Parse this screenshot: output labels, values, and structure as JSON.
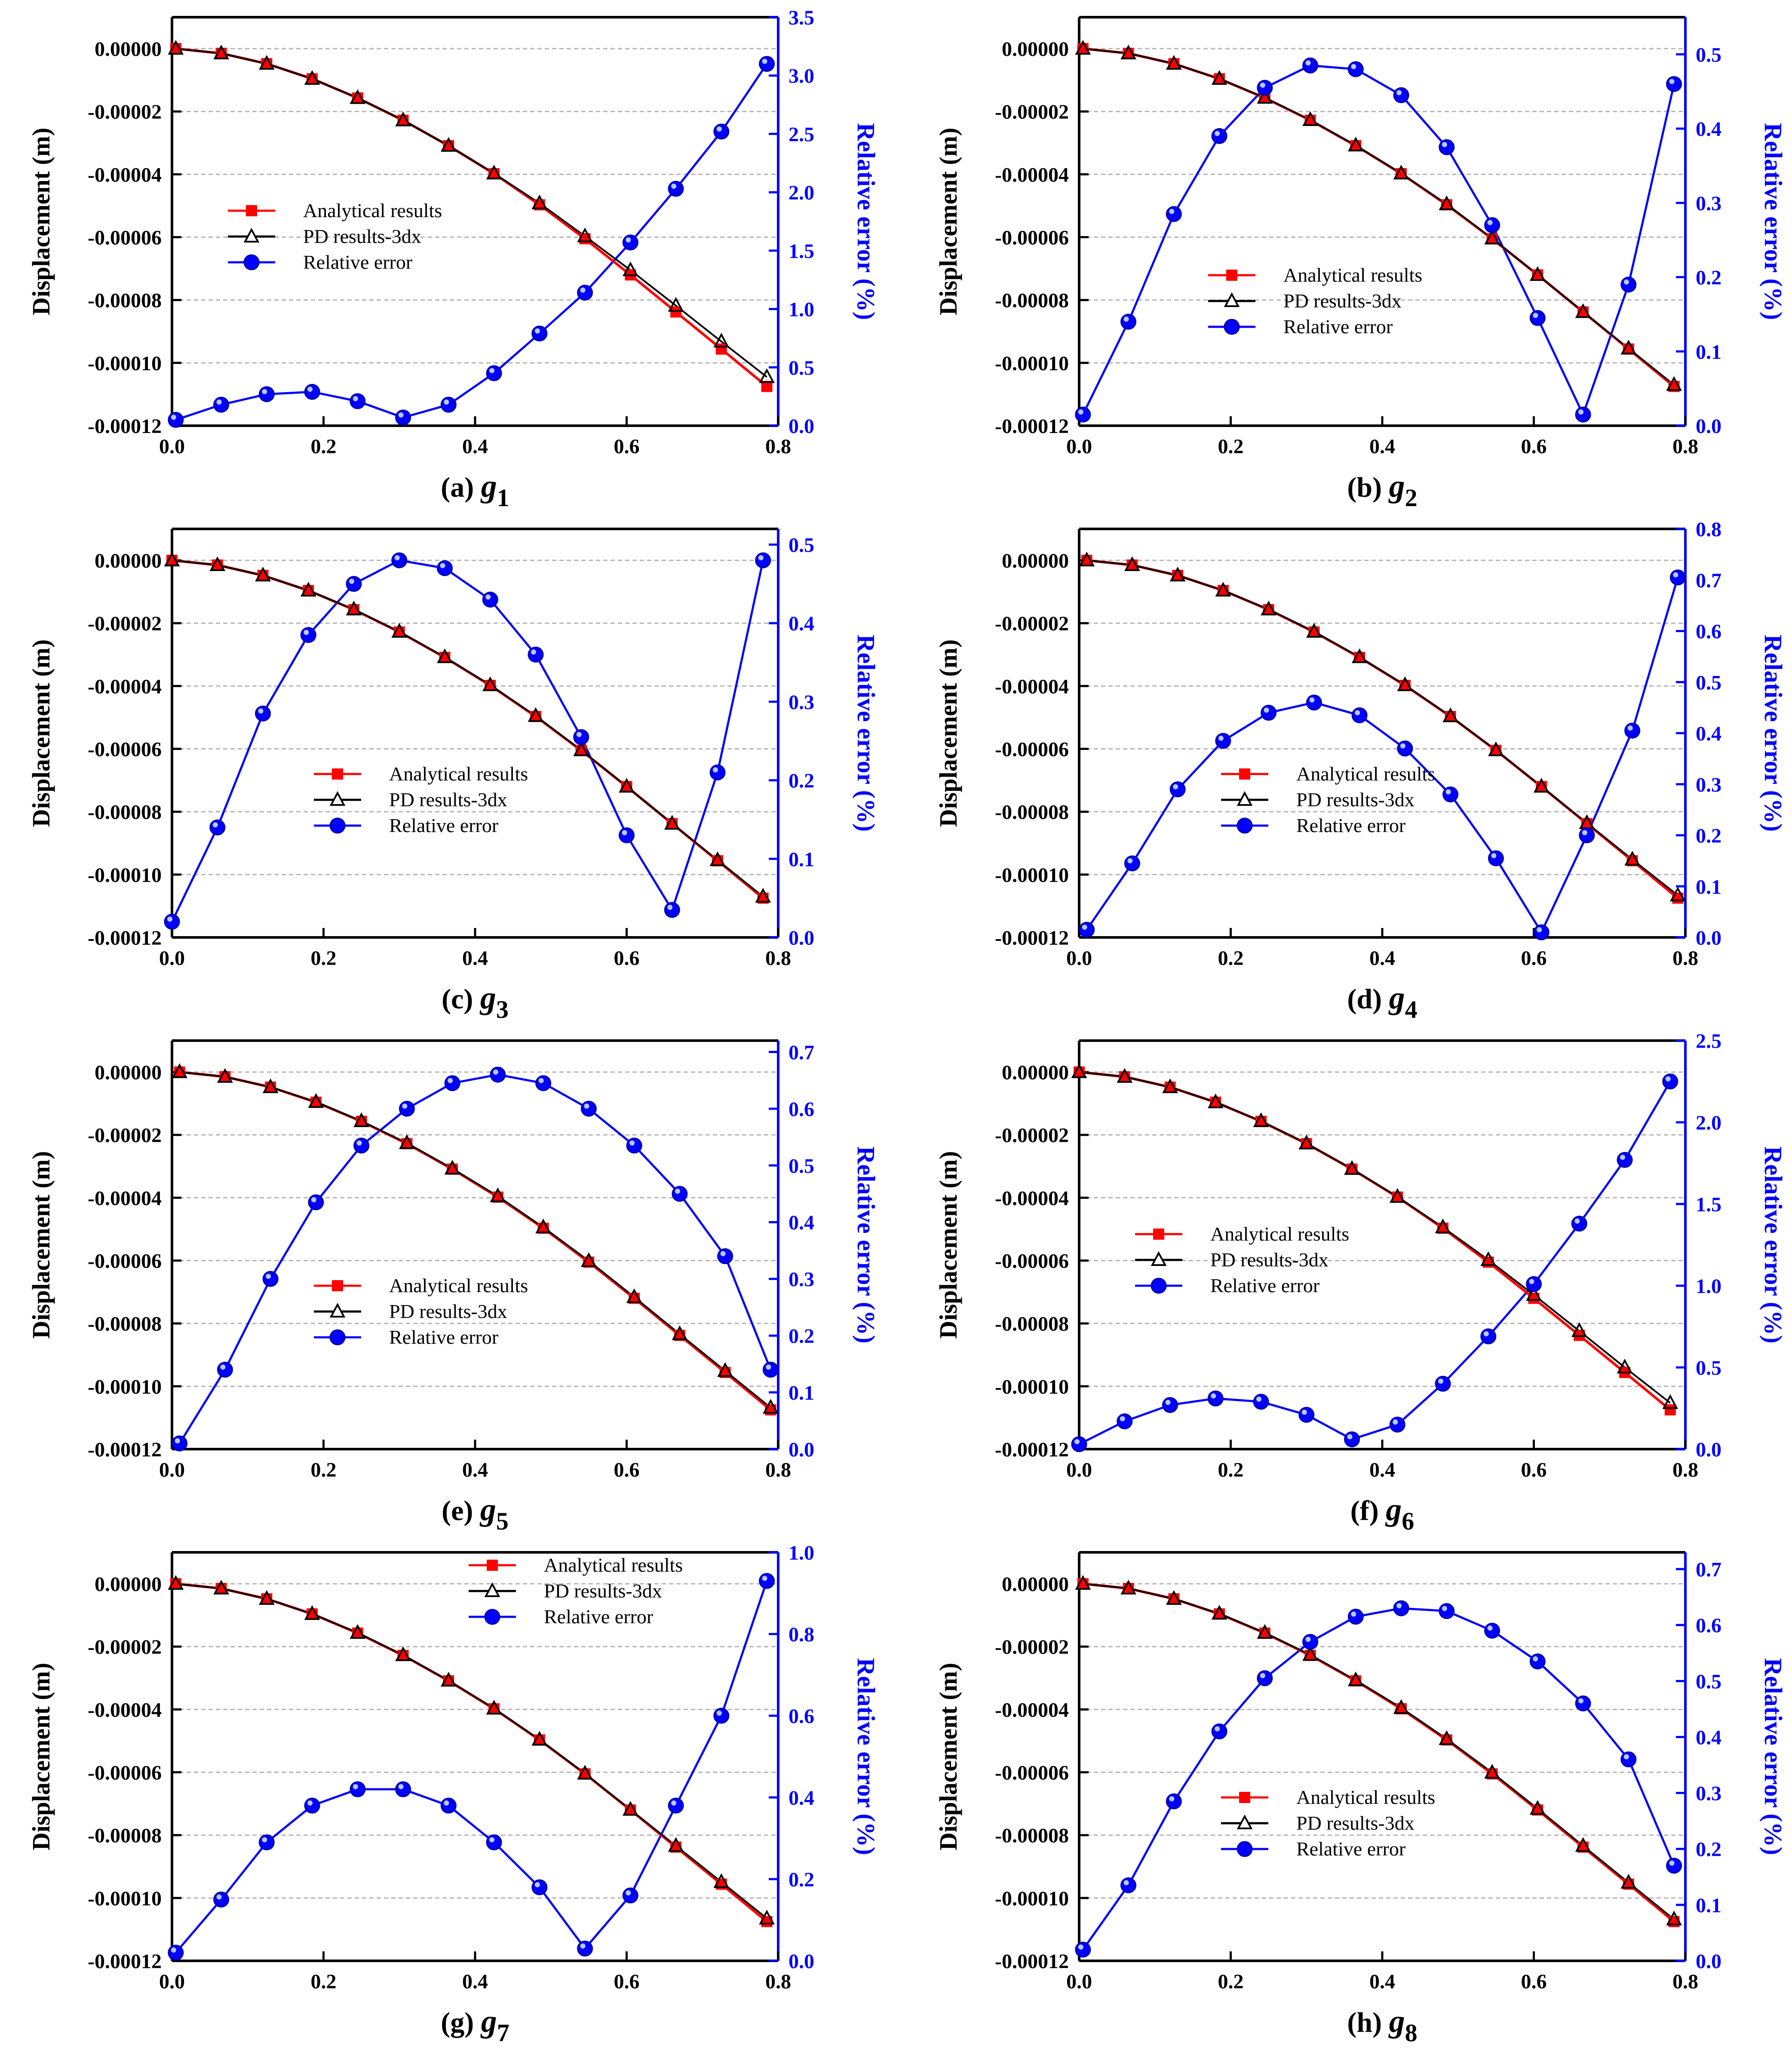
{
  "figure": {
    "legend_labels": [
      "Analytical results",
      "PD results-3dx",
      "Relative error"
    ],
    "left_axis_label": "Displacement (m)",
    "right_axis_label": "Relative error (%)",
    "x_ticks": [
      "0.0",
      "0.2",
      "0.4",
      "0.6",
      "0.8"
    ],
    "y_ticks": [
      "0.00000",
      "-0.00002",
      "-0.00004",
      "-0.00006",
      "-0.00008",
      "-0.00010",
      "-0.00012"
    ]
  },
  "colors": {
    "analytical": "#ff0000",
    "pd": "#000000",
    "error": "#0000ff",
    "grid": "#b4b4b4"
  },
  "chart_data": [
    {
      "type": "line",
      "panel": "(a)",
      "subscript": "1",
      "title": "(a) g1",
      "xlabel": "",
      "ylabel": "Displacement (m)",
      "y2label": "Relative error (%)",
      "xlim": [
        0,
        0.8
      ],
      "ylim": [
        -0.00012,
        1e-05
      ],
      "y2lim": [
        0,
        3.5
      ],
      "y2_ticks": [
        "0.0",
        "0.5",
        "1.0",
        "1.5",
        "2.0",
        "2.5",
        "3.0",
        "3.5"
      ],
      "legend_position": "center-left",
      "x": [
        0.005,
        0.065,
        0.125,
        0.185,
        0.245,
        0.305,
        0.365,
        0.425,
        0.485,
        0.545,
        0.605,
        0.665,
        0.725,
        0.785
      ],
      "series": [
        {
          "name": "Analytical results",
          "axis": "left",
          "values": [
            0,
            -1.5e-06,
            -4.8e-06,
            -9.6e-06,
            -1.57e-05,
            -2.28e-05,
            -3.09e-05,
            -3.98e-05,
            -4.97e-05,
            -6.05e-05,
            -7.2e-05,
            -8.38e-05,
            -9.56e-05,
            -0.0001075
          ]
        },
        {
          "name": "PD results-3dx",
          "axis": "left",
          "values": [
            0,
            -1.5e-06,
            -4.8e-06,
            -9.6e-06,
            -1.57e-05,
            -2.28e-05,
            -3.09e-05,
            -3.97e-05,
            -4.92e-05,
            -5.97e-05,
            -7.05e-05,
            -8.18e-05,
            -9.32e-05,
            -0.0001045
          ]
        },
        {
          "name": "Relative error",
          "axis": "right",
          "values": [
            0.05,
            0.18,
            0.27,
            0.29,
            0.21,
            0.07,
            0.18,
            0.45,
            0.79,
            1.14,
            1.57,
            2.03,
            2.52,
            3.1
          ]
        }
      ]
    },
    {
      "type": "line",
      "panel": "(b)",
      "subscript": "2",
      "title": "(b) g2",
      "xlabel": "",
      "ylabel": "Displacement (m)",
      "y2label": "Relative error (%)",
      "xlim": [
        0,
        0.8
      ],
      "ylim": [
        -0.00012,
        1e-05
      ],
      "y2lim": [
        0,
        0.55
      ],
      "y2_ticks": [
        "0.0",
        "0.1",
        "0.2",
        "0.3",
        "0.4",
        "0.5"
      ],
      "legend_position": "center",
      "x": [
        0.005,
        0.065,
        0.125,
        0.185,
        0.245,
        0.305,
        0.365,
        0.425,
        0.485,
        0.545,
        0.605,
        0.665,
        0.725,
        0.785
      ],
      "series": [
        {
          "name": "Analytical results",
          "axis": "left",
          "values": [
            0,
            -1.5e-06,
            -4.8e-06,
            -9.6e-06,
            -1.57e-05,
            -2.28e-05,
            -3.09e-05,
            -3.98e-05,
            -4.97e-05,
            -6.05e-05,
            -7.2e-05,
            -8.38e-05,
            -9.56e-05,
            -0.0001075
          ]
        },
        {
          "name": "PD results-3dx",
          "axis": "left",
          "values": [
            0,
            -1.5e-06,
            -4.8e-06,
            -9.6e-06,
            -1.56e-05,
            -2.27e-05,
            -3.08e-05,
            -3.97e-05,
            -4.95e-05,
            -6.04e-05,
            -7.2e-05,
            -8.38e-05,
            -9.54e-05,
            -0.000107
          ]
        },
        {
          "name": "Relative error",
          "axis": "right",
          "values": [
            0.015,
            0.14,
            0.285,
            0.39,
            0.455,
            0.485,
            0.48,
            0.445,
            0.375,
            0.27,
            0.145,
            0.015,
            0.19,
            0.46
          ]
        }
      ]
    },
    {
      "type": "line",
      "panel": "(c)",
      "subscript": "3",
      "title": "(c) g3",
      "xlabel": "",
      "ylabel": "Displacement (m)",
      "y2label": "Relative error (%)",
      "xlim": [
        0,
        0.8
      ],
      "ylim": [
        -0.00012,
        1e-05
      ],
      "y2lim": [
        0,
        0.52
      ],
      "y2_ticks": [
        "0.0",
        "0.1",
        "0.2",
        "0.3",
        "0.4",
        "0.5"
      ],
      "legend_position": "bottom-center",
      "x": [
        0.0,
        0.06,
        0.12,
        0.18,
        0.24,
        0.3,
        0.36,
        0.42,
        0.48,
        0.54,
        0.6,
        0.66,
        0.72,
        0.78
      ],
      "series": [
        {
          "name": "Analytical results",
          "axis": "left",
          "values": [
            0,
            -1.5e-06,
            -4.8e-06,
            -9.6e-06,
            -1.57e-05,
            -2.28e-05,
            -3.09e-05,
            -3.98e-05,
            -4.97e-05,
            -6.05e-05,
            -7.2e-05,
            -8.38e-05,
            -9.56e-05,
            -0.0001075
          ]
        },
        {
          "name": "PD results-3dx",
          "axis": "left",
          "values": [
            0,
            -1.5e-06,
            -4.8e-06,
            -9.6e-06,
            -1.56e-05,
            -2.27e-05,
            -3.08e-05,
            -3.97e-05,
            -4.95e-05,
            -6.04e-05,
            -7.2e-05,
            -8.38e-05,
            -9.54e-05,
            -0.000107
          ]
        },
        {
          "name": "Relative error",
          "axis": "right",
          "values": [
            0.02,
            0.14,
            0.285,
            0.385,
            0.45,
            0.48,
            0.47,
            0.43,
            0.36,
            0.255,
            0.13,
            0.035,
            0.21,
            0.48
          ]
        }
      ]
    },
    {
      "type": "line",
      "panel": "(d)",
      "subscript": "4",
      "title": "(d) g4",
      "xlabel": "",
      "ylabel": "Displacement (m)",
      "y2label": "Relative error (%)",
      "xlim": [
        0,
        0.8
      ],
      "ylim": [
        -0.00012,
        1e-05
      ],
      "y2lim": [
        0,
        0.8
      ],
      "y2_ticks": [
        "0.0",
        "0.1",
        "0.2",
        "0.3",
        "0.4",
        "0.5",
        "0.6",
        "0.7",
        "0.8"
      ],
      "legend_position": "bottom-center",
      "x": [
        0.01,
        0.07,
        0.13,
        0.19,
        0.25,
        0.31,
        0.37,
        0.43,
        0.49,
        0.55,
        0.61,
        0.67,
        0.73,
        0.79
      ],
      "series": [
        {
          "name": "Analytical results",
          "axis": "left",
          "values": [
            0,
            -1.5e-06,
            -4.8e-06,
            -9.6e-06,
            -1.57e-05,
            -2.28e-05,
            -3.09e-05,
            -3.98e-05,
            -4.97e-05,
            -6.05e-05,
            -7.2e-05,
            -8.38e-05,
            -9.56e-05,
            -0.0001075
          ]
        },
        {
          "name": "PD results-3dx",
          "axis": "left",
          "values": [
            0,
            -1.5e-06,
            -4.8e-06,
            -9.6e-06,
            -1.56e-05,
            -2.27e-05,
            -3.08e-05,
            -3.97e-05,
            -4.96e-05,
            -6.04e-05,
            -7.2e-05,
            -8.36e-05,
            -9.52e-05,
            -0.0001066
          ]
        },
        {
          "name": "Relative error",
          "axis": "right",
          "values": [
            0.015,
            0.145,
            0.29,
            0.385,
            0.44,
            0.46,
            0.435,
            0.37,
            0.28,
            0.155,
            0.01,
            0.2,
            0.405,
            0.705
          ]
        }
      ]
    },
    {
      "type": "line",
      "panel": "(e)",
      "subscript": "5",
      "title": "(e) g5",
      "xlabel": "",
      "ylabel": "Displacement (m)",
      "y2label": "Relative error (%)",
      "xlim": [
        0,
        0.8
      ],
      "ylim": [
        -0.00012,
        1e-05
      ],
      "y2lim": [
        0,
        0.72
      ],
      "y2_ticks": [
        "0.0",
        "0.1",
        "0.2",
        "0.3",
        "0.4",
        "0.5",
        "0.6",
        "0.7"
      ],
      "legend_position": "bottom-center",
      "x": [
        0.01,
        0.07,
        0.13,
        0.19,
        0.25,
        0.31,
        0.37,
        0.43,
        0.49,
        0.55,
        0.61,
        0.67,
        0.73,
        0.79
      ],
      "series": [
        {
          "name": "Analytical results",
          "axis": "left",
          "values": [
            0,
            -1.5e-06,
            -4.8e-06,
            -9.6e-06,
            -1.57e-05,
            -2.28e-05,
            -3.09e-05,
            -3.98e-05,
            -4.97e-05,
            -6.05e-05,
            -7.2e-05,
            -8.38e-05,
            -9.56e-05,
            -0.0001075
          ]
        },
        {
          "name": "PD results-3dx",
          "axis": "left",
          "values": [
            0,
            -1.5e-06,
            -4.8e-06,
            -9.5e-06,
            -1.56e-05,
            -2.26e-05,
            -3.07e-05,
            -3.95e-05,
            -4.94e-05,
            -6.01e-05,
            -7.16e-05,
            -8.34e-05,
            -9.51e-05,
            -0.0001068
          ]
        },
        {
          "name": "Relative error",
          "axis": "right",
          "values": [
            0.01,
            0.14,
            0.3,
            0.435,
            0.535,
            0.6,
            0.645,
            0.66,
            0.645,
            0.6,
            0.535,
            0.45,
            0.34,
            0.14
          ]
        }
      ]
    },
    {
      "type": "line",
      "panel": "(f)",
      "subscript": "6",
      "title": "(f) g6",
      "xlabel": "",
      "ylabel": "Displacement (m)",
      "y2label": "Relative error (%)",
      "xlim": [
        0,
        0.8
      ],
      "ylim": [
        -0.00012,
        1e-05
      ],
      "y2lim": [
        0,
        2.5
      ],
      "y2_ticks": [
        "0.0",
        "0.5",
        "1.0",
        "1.5",
        "2.0",
        "2.5"
      ],
      "legend_position": "center-left",
      "x": [
        0.0,
        0.06,
        0.12,
        0.18,
        0.24,
        0.3,
        0.36,
        0.42,
        0.48,
        0.54,
        0.6,
        0.66,
        0.72,
        0.78
      ],
      "series": [
        {
          "name": "Analytical results",
          "axis": "left",
          "values": [
            0,
            -1.5e-06,
            -4.8e-06,
            -9.6e-06,
            -1.57e-05,
            -2.28e-05,
            -3.09e-05,
            -3.98e-05,
            -4.97e-05,
            -6.05e-05,
            -7.2e-05,
            -8.38e-05,
            -9.56e-05,
            -0.0001075
          ]
        },
        {
          "name": "PD results-3dx",
          "axis": "left",
          "values": [
            0,
            -1.5e-06,
            -4.8e-06,
            -9.6e-06,
            -1.56e-05,
            -2.27e-05,
            -3.08e-05,
            -3.97e-05,
            -4.94e-05,
            -5.98e-05,
            -7.09e-05,
            -8.24e-05,
            -9.4e-05,
            -0.0001053
          ]
        },
        {
          "name": "Relative error",
          "axis": "right",
          "values": [
            0.03,
            0.17,
            0.27,
            0.31,
            0.29,
            0.21,
            0.06,
            0.15,
            0.4,
            0.69,
            1.01,
            1.38,
            1.77,
            2.25
          ]
        }
      ]
    },
    {
      "type": "line",
      "panel": "(g)",
      "subscript": "7",
      "title": "(g) g7",
      "xlabel": "",
      "ylabel": "Displacement (m)",
      "y2label": "Relative error (%)",
      "xlim": [
        0,
        0.8
      ],
      "ylim": [
        -0.00012,
        1e-05
      ],
      "y2lim": [
        0,
        1.0
      ],
      "y2_ticks": [
        "0.0",
        "0.2",
        "0.4",
        "0.6",
        "0.8",
        "1.0"
      ],
      "legend_position": "top-right",
      "x": [
        0.005,
        0.065,
        0.125,
        0.185,
        0.245,
        0.305,
        0.365,
        0.425,
        0.485,
        0.545,
        0.605,
        0.665,
        0.725,
        0.785
      ],
      "series": [
        {
          "name": "Analytical results",
          "axis": "left",
          "values": [
            0,
            -1.5e-06,
            -4.8e-06,
            -9.6e-06,
            -1.57e-05,
            -2.28e-05,
            -3.09e-05,
            -3.98e-05,
            -4.97e-05,
            -6.05e-05,
            -7.2e-05,
            -8.38e-05,
            -9.56e-05,
            -0.0001075
          ]
        },
        {
          "name": "PD results-3dx",
          "axis": "left",
          "values": [
            0,
            -1.5e-06,
            -4.8e-06,
            -9.6e-06,
            -1.56e-05,
            -2.27e-05,
            -3.08e-05,
            -3.97e-05,
            -4.96e-05,
            -6.04e-05,
            -7.19e-05,
            -8.34e-05,
            -9.49e-05,
            -0.0001065
          ]
        },
        {
          "name": "Relative error",
          "axis": "right",
          "values": [
            0.02,
            0.15,
            0.29,
            0.38,
            0.42,
            0.42,
            0.38,
            0.29,
            0.18,
            0.03,
            0.16,
            0.38,
            0.6,
            0.93
          ]
        }
      ]
    },
    {
      "type": "line",
      "panel": "(h)",
      "subscript": "8",
      "title": "(h) g8",
      "xlabel": "",
      "ylabel": "Displacement (m)",
      "y2label": "Relative error (%)",
      "xlim": [
        0,
        0.8
      ],
      "ylim": [
        -0.00012,
        1e-05
      ],
      "y2lim": [
        0,
        0.73
      ],
      "y2_ticks": [
        "0.0",
        "0.1",
        "0.2",
        "0.3",
        "0.4",
        "0.5",
        "0.6",
        "0.7"
      ],
      "legend_position": "bottom-center",
      "x": [
        0.005,
        0.065,
        0.125,
        0.185,
        0.245,
        0.305,
        0.365,
        0.425,
        0.485,
        0.545,
        0.605,
        0.665,
        0.725,
        0.785
      ],
      "series": [
        {
          "name": "Analytical results",
          "axis": "left",
          "values": [
            0,
            -1.5e-06,
            -4.8e-06,
            -9.6e-06,
            -1.57e-05,
            -2.28e-05,
            -3.09e-05,
            -3.98e-05,
            -4.97e-05,
            -6.05e-05,
            -7.2e-05,
            -8.38e-05,
            -9.56e-05,
            -0.0001075
          ]
        },
        {
          "name": "PD results-3dx",
          "axis": "left",
          "values": [
            0,
            -1.5e-06,
            -4.8e-06,
            -9.5e-06,
            -1.56e-05,
            -2.26e-05,
            -3.07e-05,
            -3.95e-05,
            -4.94e-05,
            -6.01e-05,
            -7.16e-05,
            -8.34e-05,
            -9.51e-05,
            -0.0001068
          ]
        },
        {
          "name": "Relative error",
          "axis": "right",
          "values": [
            0.02,
            0.135,
            0.285,
            0.41,
            0.505,
            0.57,
            0.615,
            0.63,
            0.625,
            0.59,
            0.535,
            0.46,
            0.36,
            0.17
          ]
        }
      ]
    }
  ]
}
